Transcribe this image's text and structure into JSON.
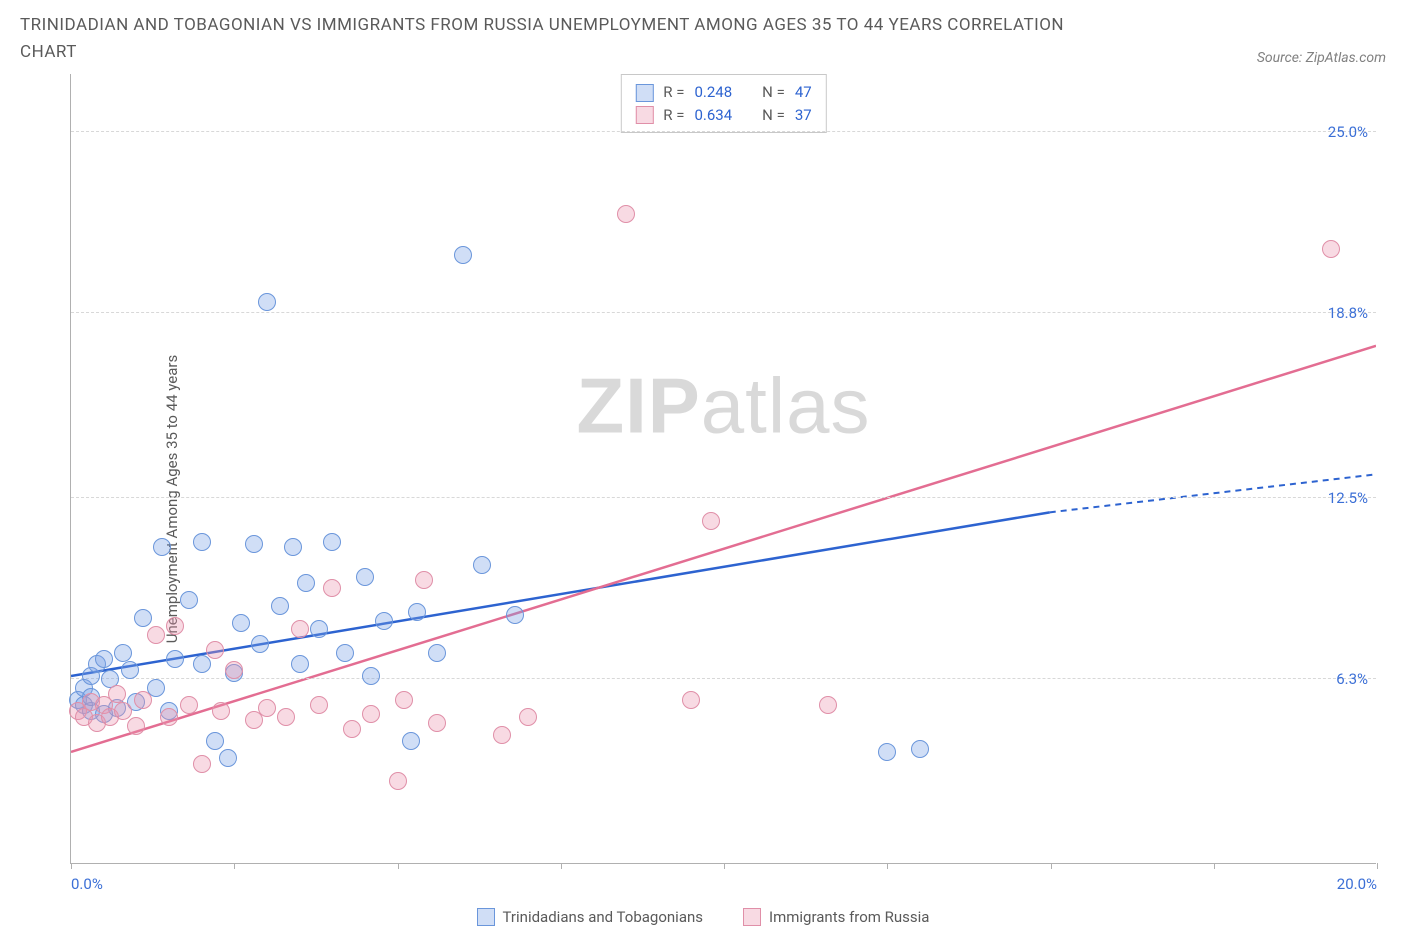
{
  "title": "TRINIDADIAN AND TOBAGONIAN VS IMMIGRANTS FROM RUSSIA UNEMPLOYMENT AMONG AGES 35 TO 44 YEARS CORRELATION CHART",
  "source": "Source: ZipAtlas.com",
  "watermark_bold": "ZIP",
  "watermark_light": "atlas",
  "chart": {
    "type": "scatter",
    "y_axis_label": "Unemployment Among Ages 35 to 44 years",
    "xlim": [
      0,
      20
    ],
    "ylim": [
      0,
      27
    ],
    "x_ticks": [
      0,
      2.5,
      5,
      7.5,
      10,
      12.5,
      15,
      17.5,
      20
    ],
    "y_gridlines": [
      6.3,
      12.5,
      18.8,
      25.0
    ],
    "y_labels": [
      "6.3%",
      "12.5%",
      "18.8%",
      "25.0%"
    ],
    "x_labels": [
      {
        "v": 0,
        "t": "0.0%"
      },
      {
        "v": 20,
        "t": "20.0%"
      }
    ],
    "background_color": "#ffffff",
    "grid_color": "#d8d8d8",
    "axis_color": "#b0b0b0",
    "series": [
      {
        "name": "Trinidadians and Tobagonians",
        "fill": "rgba(120,160,230,0.35)",
        "stroke": "#6a96db",
        "trend_color": "#2d63d0",
        "R": "0.248",
        "N": "47",
        "trend": {
          "x1": 0,
          "y1": 6.4,
          "x2_solid": 15.0,
          "y2_solid": 12.0,
          "x2_dash": 20.0,
          "y2_dash": 13.3
        },
        "points": [
          [
            0.1,
            5.6
          ],
          [
            0.2,
            5.4
          ],
          [
            0.2,
            6.0
          ],
          [
            0.3,
            5.2
          ],
          [
            0.3,
            5.7
          ],
          [
            0.3,
            6.4
          ],
          [
            0.4,
            6.8
          ],
          [
            0.5,
            5.1
          ],
          [
            0.5,
            7.0
          ],
          [
            0.6,
            6.3
          ],
          [
            0.7,
            5.3
          ],
          [
            0.8,
            7.2
          ],
          [
            0.9,
            6.6
          ],
          [
            1.0,
            5.5
          ],
          [
            1.1,
            8.4
          ],
          [
            1.3,
            6.0
          ],
          [
            1.4,
            10.8
          ],
          [
            1.5,
            5.2
          ],
          [
            1.6,
            7.0
          ],
          [
            1.8,
            9.0
          ],
          [
            2.0,
            6.8
          ],
          [
            2.0,
            11.0
          ],
          [
            2.2,
            4.2
          ],
          [
            2.4,
            3.6
          ],
          [
            2.5,
            6.5
          ],
          [
            2.6,
            8.2
          ],
          [
            2.8,
            10.9
          ],
          [
            2.9,
            7.5
          ],
          [
            3.0,
            19.2
          ],
          [
            3.2,
            8.8
          ],
          [
            3.4,
            10.8
          ],
          [
            3.5,
            6.8
          ],
          [
            3.6,
            9.6
          ],
          [
            3.8,
            8.0
          ],
          [
            4.0,
            11.0
          ],
          [
            4.2,
            7.2
          ],
          [
            4.5,
            9.8
          ],
          [
            4.6,
            6.4
          ],
          [
            4.8,
            8.3
          ],
          [
            5.2,
            4.2
          ],
          [
            5.3,
            8.6
          ],
          [
            5.6,
            7.2
          ],
          [
            6.0,
            20.8
          ],
          [
            6.3,
            10.2
          ],
          [
            6.8,
            8.5
          ],
          [
            12.5,
            3.8
          ],
          [
            13.0,
            3.9
          ]
        ]
      },
      {
        "name": "Immigrants from Russia",
        "fill": "rgba(235,150,175,0.35)",
        "stroke": "#e08fa8",
        "trend_color": "#e36d92",
        "R": "0.634",
        "N": "37",
        "trend": {
          "x1": 0,
          "y1": 3.8,
          "x2_solid": 20.0,
          "y2_solid": 17.7,
          "x2_dash": 20.0,
          "y2_dash": 17.7
        },
        "points": [
          [
            0.1,
            5.2
          ],
          [
            0.2,
            5.0
          ],
          [
            0.3,
            5.5
          ],
          [
            0.4,
            4.8
          ],
          [
            0.5,
            5.4
          ],
          [
            0.6,
            5.0
          ],
          [
            0.7,
            5.8
          ],
          [
            0.8,
            5.2
          ],
          [
            1.0,
            4.7
          ],
          [
            1.1,
            5.6
          ],
          [
            1.3,
            7.8
          ],
          [
            1.5,
            5.0
          ],
          [
            1.6,
            8.1
          ],
          [
            1.8,
            5.4
          ],
          [
            2.0,
            3.4
          ],
          [
            2.2,
            7.3
          ],
          [
            2.3,
            5.2
          ],
          [
            2.5,
            6.6
          ],
          [
            2.8,
            4.9
          ],
          [
            3.0,
            5.3
          ],
          [
            3.3,
            5.0
          ],
          [
            3.5,
            8.0
          ],
          [
            3.8,
            5.4
          ],
          [
            4.0,
            9.4
          ],
          [
            4.3,
            4.6
          ],
          [
            4.6,
            5.1
          ],
          [
            5.0,
            2.8
          ],
          [
            5.1,
            5.6
          ],
          [
            5.4,
            9.7
          ],
          [
            5.6,
            4.8
          ],
          [
            6.6,
            4.4
          ],
          [
            7.0,
            5.0
          ],
          [
            8.5,
            22.2
          ],
          [
            9.5,
            5.6
          ],
          [
            9.8,
            11.7
          ],
          [
            11.6,
            5.4
          ],
          [
            19.3,
            21.0
          ]
        ]
      }
    ]
  },
  "legend": {
    "series1": "Trinidadians and Tobagonians",
    "series2": "Immigrants from Russia"
  },
  "stats": {
    "r_label": "R =",
    "n_label": "N ="
  }
}
